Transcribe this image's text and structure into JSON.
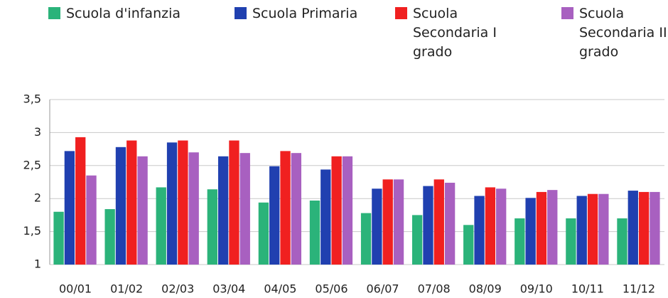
{
  "chart_data": {
    "type": "bar",
    "categories": [
      "00/01",
      "01/02",
      "02/03",
      "03/04",
      "04/05",
      "05/06",
      "06/07",
      "07/08",
      "08/09",
      "09/10",
      "10/11",
      "11/12"
    ],
    "series": [
      {
        "name": "Scuola d'infanzia",
        "color": "#2bb37a",
        "values": [
          1.8,
          1.84,
          2.17,
          2.14,
          1.94,
          1.97,
          1.78,
          1.75,
          1.6,
          1.7,
          1.7,
          1.7
        ]
      },
      {
        "name": "Scuola Primaria",
        "color": "#2040b0",
        "values": [
          2.72,
          2.78,
          2.85,
          2.64,
          2.49,
          2.44,
          2.15,
          2.19,
          2.04,
          2.01,
          2.04,
          2.12
        ]
      },
      {
        "name": "Scuola Secondaria I grado",
        "color": "#f02020",
        "values": [
          2.93,
          2.88,
          2.88,
          2.88,
          2.72,
          2.64,
          2.29,
          2.29,
          2.17,
          2.1,
          2.07,
          2.1
        ]
      },
      {
        "name": "Scuola Secondaria II grado",
        "color": "#a860c0",
        "values": [
          2.35,
          2.64,
          2.7,
          2.69,
          2.69,
          2.64,
          2.29,
          2.24,
          2.15,
          2.13,
          2.07,
          2.1
        ]
      }
    ],
    "ylim": [
      1,
      3.5
    ],
    "yticks": [
      1,
      {
        "value": 1.5,
        "label": "1,5"
      },
      2,
      {
        "value": 2.5,
        "label": "2,5"
      },
      3,
      {
        "value": 3.5,
        "label": "3,5"
      }
    ],
    "grid": true
  }
}
